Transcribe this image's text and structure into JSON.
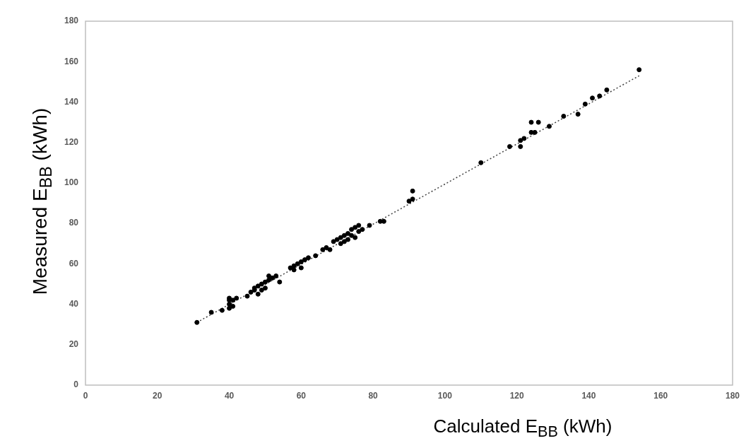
{
  "chart_data": {
    "type": "scatter",
    "xlabel": "Calculated E$_{BB}$ (kWh)",
    "ylabel": "Measured E$_{BB}$ (kWh)",
    "xlim": [
      0,
      180
    ],
    "ylim": [
      0,
      180
    ],
    "xticks": [
      0,
      20,
      40,
      60,
      80,
      100,
      120,
      140,
      160,
      180
    ],
    "yticks": [
      0,
      20,
      40,
      60,
      80,
      100,
      120,
      140,
      160,
      180
    ],
    "grid": false,
    "legend": false,
    "marker": "circle",
    "series": [
      {
        "color": "#000000",
        "x": [
          31,
          35,
          38,
          40,
          40,
          40,
          40,
          41,
          41,
          42,
          45,
          46,
          47,
          47,
          48,
          48,
          49,
          49,
          50,
          50,
          51,
          51,
          52,
          53,
          54,
          57,
          58,
          58,
          59,
          60,
          60,
          61,
          62,
          64,
          66,
          67,
          68,
          69,
          70,
          71,
          71,
          72,
          72,
          73,
          73,
          74,
          74,
          75,
          75,
          76,
          76,
          77,
          79,
          82,
          83,
          90,
          91,
          91,
          110,
          118,
          121,
          121,
          122,
          124,
          124,
          126,
          125,
          129,
          133,
          137,
          139,
          141,
          143,
          145,
          154
        ],
        "values": [
          31,
          36,
          37,
          38,
          40,
          42,
          43,
          42,
          39,
          43,
          44,
          46,
          47,
          48,
          45,
          49,
          47,
          50,
          51,
          48,
          52,
          54,
          53,
          54,
          51,
          58,
          59,
          57,
          60,
          58,
          61,
          62,
          63,
          64,
          67,
          68,
          67,
          71,
          72,
          70,
          73,
          71,
          74,
          75,
          72,
          74,
          77,
          73,
          78,
          76,
          79,
          77,
          79,
          81,
          81,
          91,
          92,
          96,
          110,
          118,
          118,
          121,
          122,
          125,
          130,
          130,
          125,
          128,
          133,
          134,
          139,
          142,
          143,
          146,
          156
        ]
      },
      {
        "type": "line",
        "color": "#404040",
        "line_style": "dotted",
        "marker": "none",
        "x": [
          31,
          154
        ],
        "values": [
          31,
          153
        ]
      }
    ]
  }
}
